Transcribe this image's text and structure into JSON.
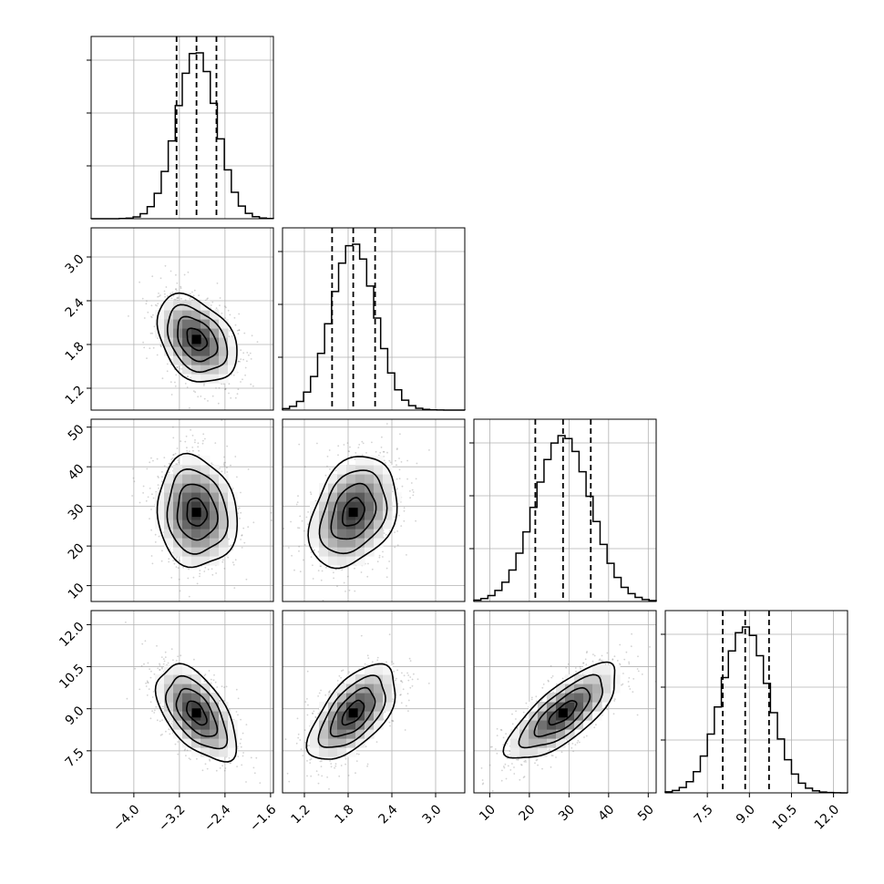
{
  "chart_data": {
    "type": "corner",
    "grid": true,
    "colors": {
      "line": "#000000",
      "points": "#808080",
      "grid": "#b0b0b0"
    },
    "parameters": [
      {
        "ticks": [
          -4.0,
          -3.2,
          -2.4,
          -1.6
        ],
        "tick_labels": [
          "−4.0",
          "−3.2",
          "−2.4",
          "−1.6"
        ],
        "range": [
          -4.75,
          -1.55
        ],
        "mean": -2.9,
        "std": 0.35,
        "quantiles": [
          -3.25,
          -2.9,
          -2.55
        ]
      },
      {
        "ticks": [
          1.2,
          1.8,
          2.4,
          3.0
        ],
        "tick_labels": [
          "1.2",
          "1.8",
          "2.4",
          "3.0"
        ],
        "range": [
          0.9,
          3.4
        ],
        "mean": 1.87,
        "std": 0.3,
        "quantiles": [
          1.58,
          1.87,
          2.17
        ]
      },
      {
        "ticks": [
          10,
          20,
          30,
          40,
          50
        ],
        "tick_labels": [
          "10",
          "20",
          "30",
          "40",
          "50"
        ],
        "range": [
          6,
          52
        ],
        "mean": 28.5,
        "std": 7.0,
        "quantiles": [
          21.5,
          28.5,
          35.5
        ]
      },
      {
        "ticks": [
          7.5,
          9.0,
          10.5,
          12.0
        ],
        "tick_labels": [
          "7.5",
          "9.0",
          "10.5",
          "12.0"
        ],
        "range": [
          6.0,
          12.5
        ],
        "mean": 8.85,
        "std": 0.85,
        "quantiles": [
          8.05,
          8.85,
          9.7
        ]
      }
    ],
    "correlations": [
      [
        1,
        -0.35,
        -0.1,
        -0.55
      ],
      [
        -0.35,
        1,
        0.3,
        0.6
      ],
      [
        -0.1,
        0.3,
        1,
        0.75
      ],
      [
        -0.55,
        0.6,
        0.75,
        1
      ]
    ]
  }
}
